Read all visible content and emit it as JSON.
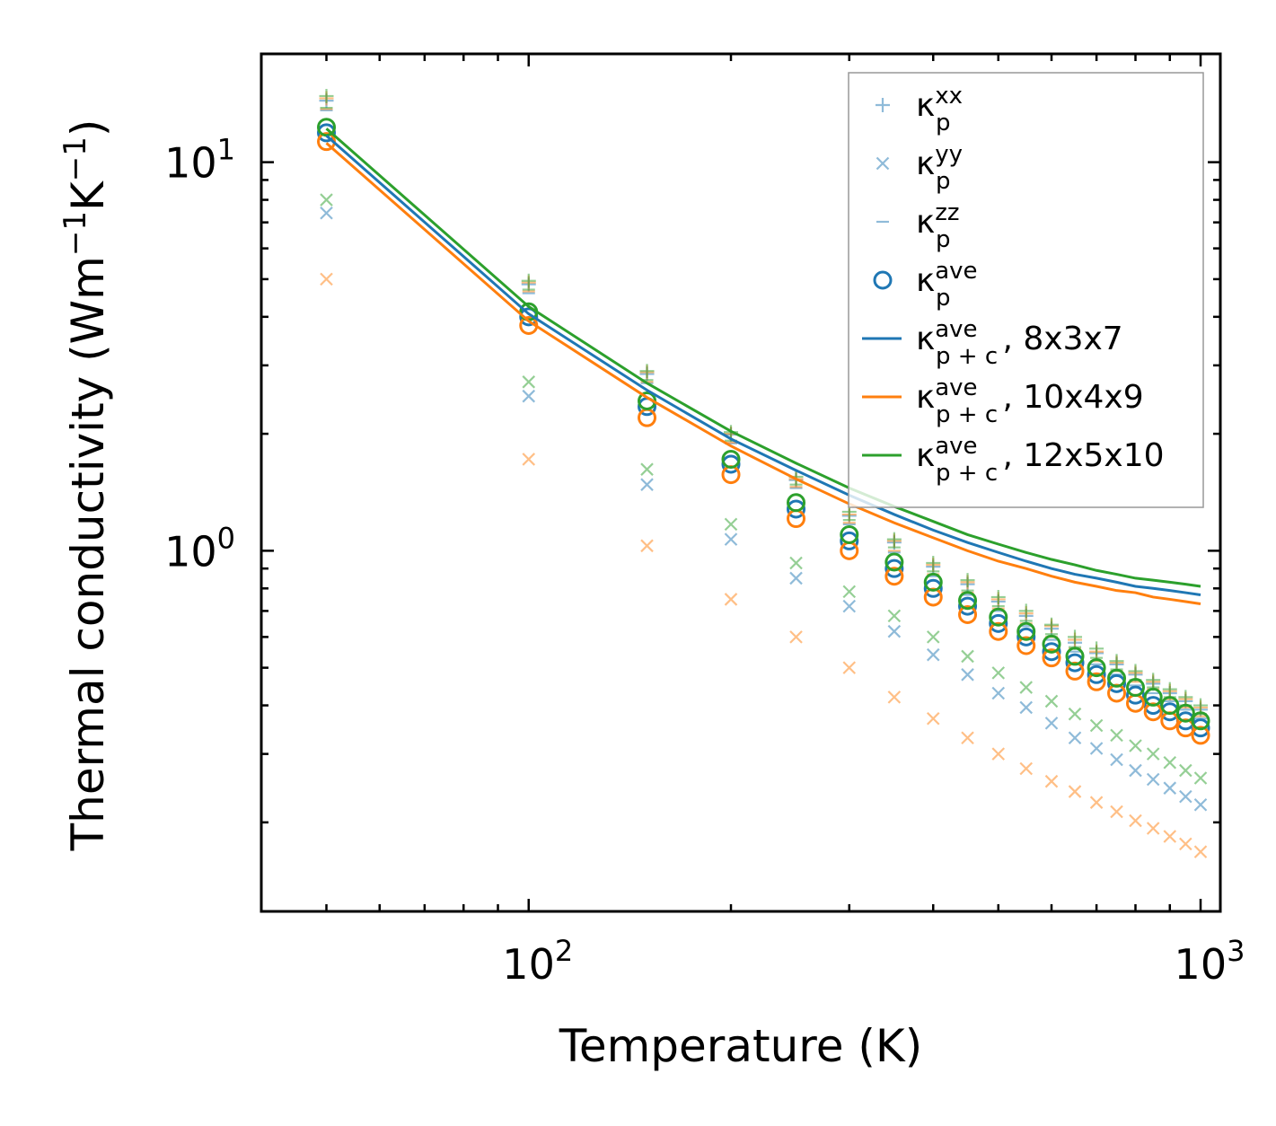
{
  "chart_data": {
    "type": "scatter",
    "xscale": "log",
    "yscale": "log",
    "xlim": [
      40,
      1070
    ],
    "ylim": [
      0.118,
      19
    ],
    "xlabel": "Temperature (K)",
    "ylabel_parts": [
      "Thermal conductivity (Wm",
      "−1",
      "K",
      "−1",
      ")"
    ],
    "xticks": [
      {
        "base": "10",
        "exp": "2",
        "value": 100
      },
      {
        "base": "10",
        "exp": "3",
        "value": 1000
      }
    ],
    "yticks": [
      {
        "base": "10",
        "exp": "0",
        "value": 1
      },
      {
        "base": "10",
        "exp": "1",
        "value": 10
      }
    ],
    "colors": {
      "blue": "#1f77b4",
      "orange": "#ff7f0e",
      "green": "#2ca02c"
    },
    "x": [
      50,
      100,
      150,
      200,
      250,
      300,
      350,
      400,
      450,
      500,
      550,
      600,
      650,
      700,
      750,
      800,
      850,
      900,
      950,
      1000
    ],
    "legend": [
      {
        "key": "kxx",
        "symbol": "κ",
        "sub": "p",
        "sup": "xx",
        "suffix": "",
        "marker": "plus"
      },
      {
        "key": "kyy",
        "symbol": "κ",
        "sub": "p",
        "sup": "yy",
        "suffix": "",
        "marker": "x"
      },
      {
        "key": "kzz",
        "symbol": "κ",
        "sub": "p",
        "sup": "zz",
        "suffix": "",
        "marker": "dash"
      },
      {
        "key": "kave",
        "symbol": "κ",
        "sub": "p",
        "sup": "ave",
        "suffix": "",
        "marker": "circle"
      },
      {
        "key": "line1",
        "symbol": "κ",
        "sub": "p + c",
        "sup": "ave",
        "suffix": ", 8x3x7",
        "marker": "line",
        "color": "#1f77b4"
      },
      {
        "key": "line2",
        "symbol": "κ",
        "sub": "p + c",
        "sup": "ave",
        "suffix": ", 10x4x9",
        "marker": "line",
        "color": "#ff7f0e"
      },
      {
        "key": "line3",
        "symbol": "κ",
        "sub": "p + c",
        "sup": "ave",
        "suffix": ", 12x5x10",
        "marker": "line",
        "color": "#2ca02c"
      }
    ],
    "series": [
      {
        "name": "8x3x7",
        "color": "#1f77b4",
        "kxx": [
          14.4,
          4.85,
          2.85,
          1.99,
          1.52,
          1.23,
          1.05,
          0.91,
          0.82,
          0.74,
          0.68,
          0.63,
          0.58,
          0.545,
          0.51,
          0.48,
          0.455,
          0.43,
          0.41,
          0.39
        ],
        "kyy": [
          7.4,
          2.5,
          1.48,
          1.07,
          0.85,
          0.72,
          0.62,
          0.54,
          0.48,
          0.43,
          0.395,
          0.36,
          0.33,
          0.31,
          0.29,
          0.272,
          0.258,
          0.245,
          0.233,
          0.222
        ],
        "kzz": [
          13.6,
          4.6,
          2.7,
          1.89,
          1.45,
          1.17,
          0.99,
          0.86,
          0.77,
          0.7,
          0.64,
          0.59,
          0.55,
          0.51,
          0.48,
          0.45,
          0.43,
          0.41,
          0.39,
          0.37
        ],
        "kave": [
          11.9,
          4.0,
          2.35,
          1.67,
          1.28,
          1.06,
          0.9,
          0.8,
          0.72,
          0.65,
          0.6,
          0.55,
          0.515,
          0.48,
          0.455,
          0.425,
          0.4,
          0.385,
          0.365,
          0.35
        ],
        "kpc": [
          11.7,
          4.07,
          2.59,
          1.94,
          1.61,
          1.39,
          1.24,
          1.13,
          1.05,
          0.99,
          0.94,
          0.9,
          0.87,
          0.85,
          0.83,
          0.81,
          0.8,
          0.79,
          0.78,
          0.77
        ]
      },
      {
        "name": "10x4x9",
        "color": "#ff7f0e",
        "kxx": [
          14.6,
          4.9,
          2.88,
          2.0,
          1.53,
          1.24,
          1.06,
          0.92,
          0.83,
          0.75,
          0.69,
          0.64,
          0.59,
          0.55,
          0.515,
          0.485,
          0.46,
          0.435,
          0.415,
          0.395
        ],
        "kyy": [
          5.0,
          1.72,
          1.03,
          0.75,
          0.6,
          0.5,
          0.42,
          0.37,
          0.33,
          0.3,
          0.275,
          0.255,
          0.24,
          0.225,
          0.213,
          0.202,
          0.193,
          0.184,
          0.176,
          0.168
        ],
        "kzz": [
          13.7,
          4.65,
          2.72,
          1.9,
          1.46,
          1.18,
          1.0,
          0.87,
          0.78,
          0.71,
          0.65,
          0.6,
          0.56,
          0.52,
          0.49,
          0.46,
          0.44,
          0.415,
          0.395,
          0.375
        ],
        "kave": [
          11.3,
          3.8,
          2.2,
          1.57,
          1.21,
          1.0,
          0.86,
          0.76,
          0.685,
          0.62,
          0.57,
          0.53,
          0.49,
          0.46,
          0.43,
          0.405,
          0.385,
          0.365,
          0.35,
          0.335
        ],
        "kpc": [
          11.2,
          3.9,
          2.48,
          1.86,
          1.53,
          1.32,
          1.18,
          1.08,
          1.0,
          0.94,
          0.9,
          0.86,
          0.83,
          0.81,
          0.79,
          0.78,
          0.76,
          0.75,
          0.74,
          0.73
        ]
      },
      {
        "name": "12x5x10",
        "color": "#2ca02c",
        "kxx": [
          14.8,
          4.95,
          2.9,
          2.02,
          1.55,
          1.26,
          1.07,
          0.93,
          0.84,
          0.76,
          0.7,
          0.645,
          0.6,
          0.56,
          0.52,
          0.49,
          0.465,
          0.44,
          0.42,
          0.4
        ],
        "kyy": [
          8.0,
          2.72,
          1.62,
          1.17,
          0.93,
          0.785,
          0.68,
          0.6,
          0.535,
          0.485,
          0.445,
          0.41,
          0.38,
          0.355,
          0.335,
          0.315,
          0.3,
          0.285,
          0.272,
          0.26
        ],
        "kzz": [
          13.8,
          4.7,
          2.75,
          1.92,
          1.48,
          1.2,
          1.02,
          0.885,
          0.79,
          0.72,
          0.66,
          0.61,
          0.565,
          0.53,
          0.495,
          0.465,
          0.445,
          0.42,
          0.4,
          0.38
        ],
        "kave": [
          12.3,
          4.12,
          2.43,
          1.72,
          1.33,
          1.1,
          0.935,
          0.83,
          0.745,
          0.675,
          0.62,
          0.575,
          0.535,
          0.5,
          0.47,
          0.445,
          0.42,
          0.4,
          0.382,
          0.365
        ],
        "kpc": [
          12.2,
          4.25,
          2.7,
          2.03,
          1.68,
          1.45,
          1.3,
          1.19,
          1.1,
          1.04,
          0.99,
          0.95,
          0.92,
          0.89,
          0.87,
          0.85,
          0.84,
          0.83,
          0.82,
          0.81
        ]
      }
    ]
  }
}
